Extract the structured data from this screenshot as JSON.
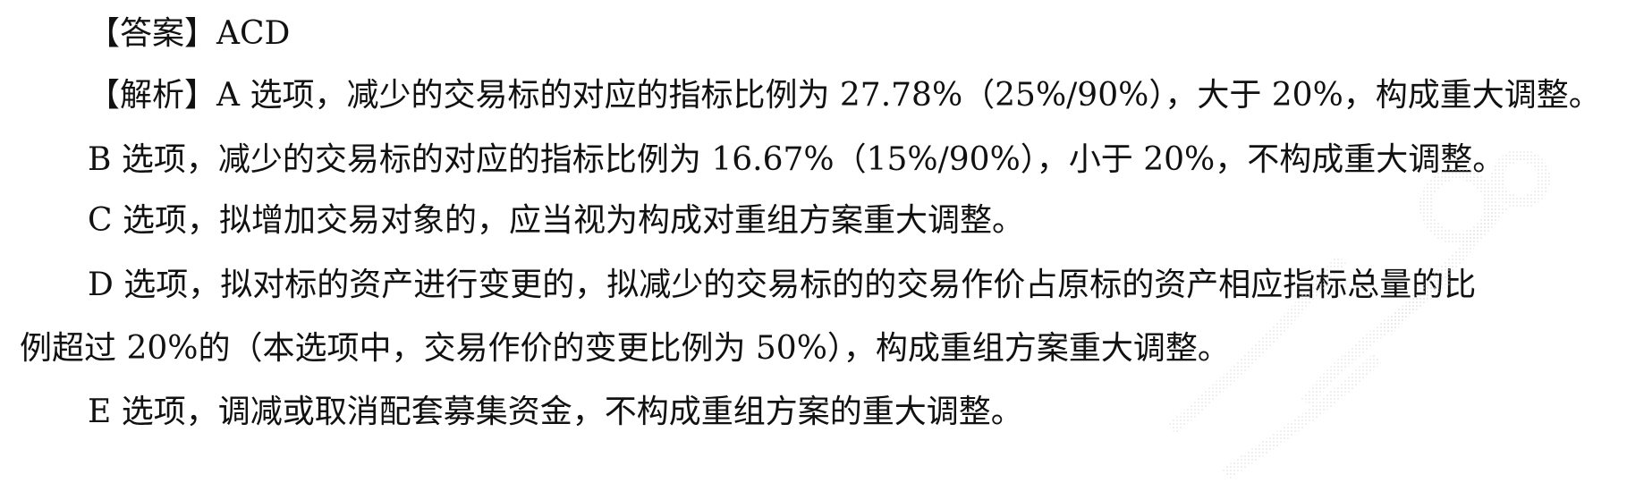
{
  "document": {
    "lines": [
      "【答案】ACD",
      "【解析】A 选项，减少的交易标的对应的指标比例为 27.78%（25%/90%），大于 20%，构成重大调整。",
      "B 选项，减少的交易标的对应的指标比例为 16.67%（15%/90%），小于 20%，不构成重大调整。",
      "C 选项，拟增加交易对象的，应当视为构成对重组方案重大调整。",
      "D 选项，拟对标的资产进行变更的，拟减少的交易标的的交易作价占原标的资产相应指标总量的比",
      "例超过 20%的（本选项中，交易作价的变更比例为 50%），构成重组方案重大调整。",
      "E 选项，调减或取消配套募集资金，不构成重组方案的重大调整。"
    ]
  }
}
